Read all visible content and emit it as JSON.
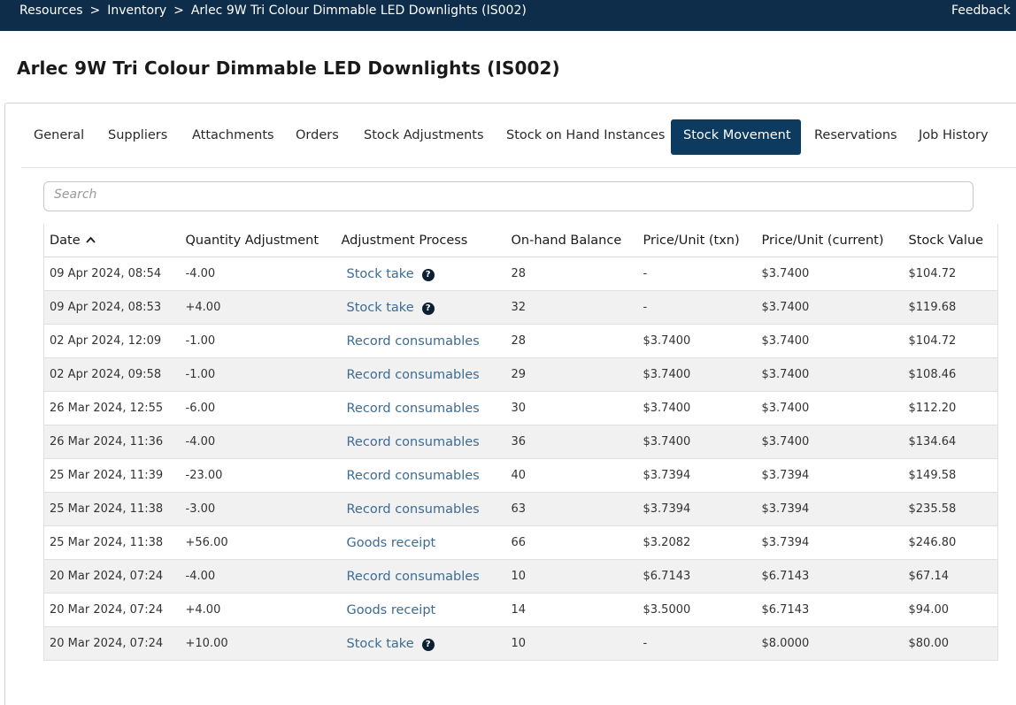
{
  "breadcrumb": {
    "items": [
      "Resources",
      "Inventory",
      "Arlec 9W Tri Colour Dimmable LED Downlights (IS002)"
    ],
    "separator": ">"
  },
  "header": {
    "feedback_label": "Feedback"
  },
  "page": {
    "title": "Arlec 9W Tri Colour Dimmable LED Downlights (IS002)"
  },
  "tabs": [
    {
      "label": "General"
    },
    {
      "label": "Suppliers"
    },
    {
      "label": "Attachments"
    },
    {
      "label": "Orders"
    },
    {
      "label": "Stock Adjustments"
    },
    {
      "label": "Stock on Hand Instances"
    },
    {
      "label": "Stock Movement",
      "active": true
    },
    {
      "label": "Reservations"
    },
    {
      "label": "Job History"
    }
  ],
  "search": {
    "placeholder": "Search",
    "value": ""
  },
  "table": {
    "columns": [
      "Date",
      "Quantity Adjustment",
      "Adjustment Process",
      "On-hand Balance",
      "Price/Unit (txn)",
      "Price/Unit (current)",
      "Stock Value"
    ],
    "sort": {
      "column": "Date",
      "direction": "ascending-icon"
    },
    "rows": [
      {
        "date": "09 Apr 2024, 08:54",
        "qty": "-4.00",
        "qty_negative_highlight": true,
        "process": "Stock take",
        "help": true,
        "balance": "28",
        "price_txn": "-",
        "price_current": "$3.7400",
        "value": "$104.72"
      },
      {
        "date": "09 Apr 2024, 08:53",
        "qty": "+4.00",
        "qty_negative_highlight": false,
        "process": "Stock take",
        "help": true,
        "balance": "32",
        "price_txn": "-",
        "price_current": "$3.7400",
        "value": "$119.68"
      },
      {
        "date": "02 Apr 2024, 12:09",
        "qty": "-1.00",
        "qty_negative_highlight": false,
        "process": "Record consumables",
        "help": false,
        "balance": "28",
        "price_txn": "$3.7400",
        "price_current": "$3.7400",
        "value": "$104.72"
      },
      {
        "date": "02 Apr 2024, 09:58",
        "qty": "-1.00",
        "qty_negative_highlight": false,
        "process": "Record consumables",
        "help": false,
        "balance": "29",
        "price_txn": "$3.7400",
        "price_current": "$3.7400",
        "value": "$108.46"
      },
      {
        "date": "26 Mar 2024, 12:55",
        "qty": "-6.00",
        "qty_negative_highlight": false,
        "process": "Record consumables",
        "help": false,
        "balance": "30",
        "price_txn": "$3.7400",
        "price_current": "$3.7400",
        "value": "$112.20"
      },
      {
        "date": "26 Mar 2024, 11:36",
        "qty": "-4.00",
        "qty_negative_highlight": false,
        "process": "Record consumables",
        "help": false,
        "balance": "36",
        "price_txn": "$3.7400",
        "price_current": "$3.7400",
        "value": "$134.64"
      },
      {
        "date": "25 Mar 2024, 11:39",
        "qty": "-23.00",
        "qty_negative_highlight": false,
        "process": "Record consumables",
        "help": false,
        "balance": "40",
        "price_txn": "$3.7394",
        "price_current": "$3.7394",
        "value": "$149.58"
      },
      {
        "date": "25 Mar 2024, 11:38",
        "qty": "-3.00",
        "qty_negative_highlight": false,
        "process": "Record consumables",
        "help": false,
        "balance": "63",
        "price_txn": "$3.7394",
        "price_current": "$3.7394",
        "value": "$235.58"
      },
      {
        "date": "25 Mar 2024, 11:38",
        "qty": "+56.00",
        "qty_negative_highlight": false,
        "process": "Goods receipt",
        "help": false,
        "balance": "66",
        "price_txn": "$3.2082",
        "price_current": "$3.7394",
        "value": "$246.80"
      },
      {
        "date": "20 Mar 2024, 07:24",
        "qty": "-4.00",
        "qty_negative_highlight": false,
        "process": "Record consumables",
        "help": false,
        "balance": "10",
        "price_txn": "$6.7143",
        "price_current": "$6.7143",
        "value": "$67.14"
      },
      {
        "date": "20 Mar 2024, 07:24",
        "qty": "+4.00",
        "qty_negative_highlight": false,
        "process": "Goods receipt",
        "help": false,
        "balance": "14",
        "price_txn": "$3.5000",
        "price_current": "$6.7143",
        "value": "$94.00"
      },
      {
        "date": "20 Mar 2024, 07:24",
        "qty": "+10.00",
        "qty_negative_highlight": false,
        "process": "Stock take",
        "help": true,
        "balance": "10",
        "price_txn": "-",
        "price_current": "$8.0000",
        "value": "$80.00"
      }
    ]
  },
  "colors": {
    "topbar": "#0d2d4a",
    "active_tab": "#0d3a5f",
    "link": "#3c6b94",
    "negative": "#d9342b",
    "row_alt": "#f1f1f1"
  },
  "icons": {
    "help": "question-circle-icon",
    "sort": "chevron-up-icon"
  }
}
